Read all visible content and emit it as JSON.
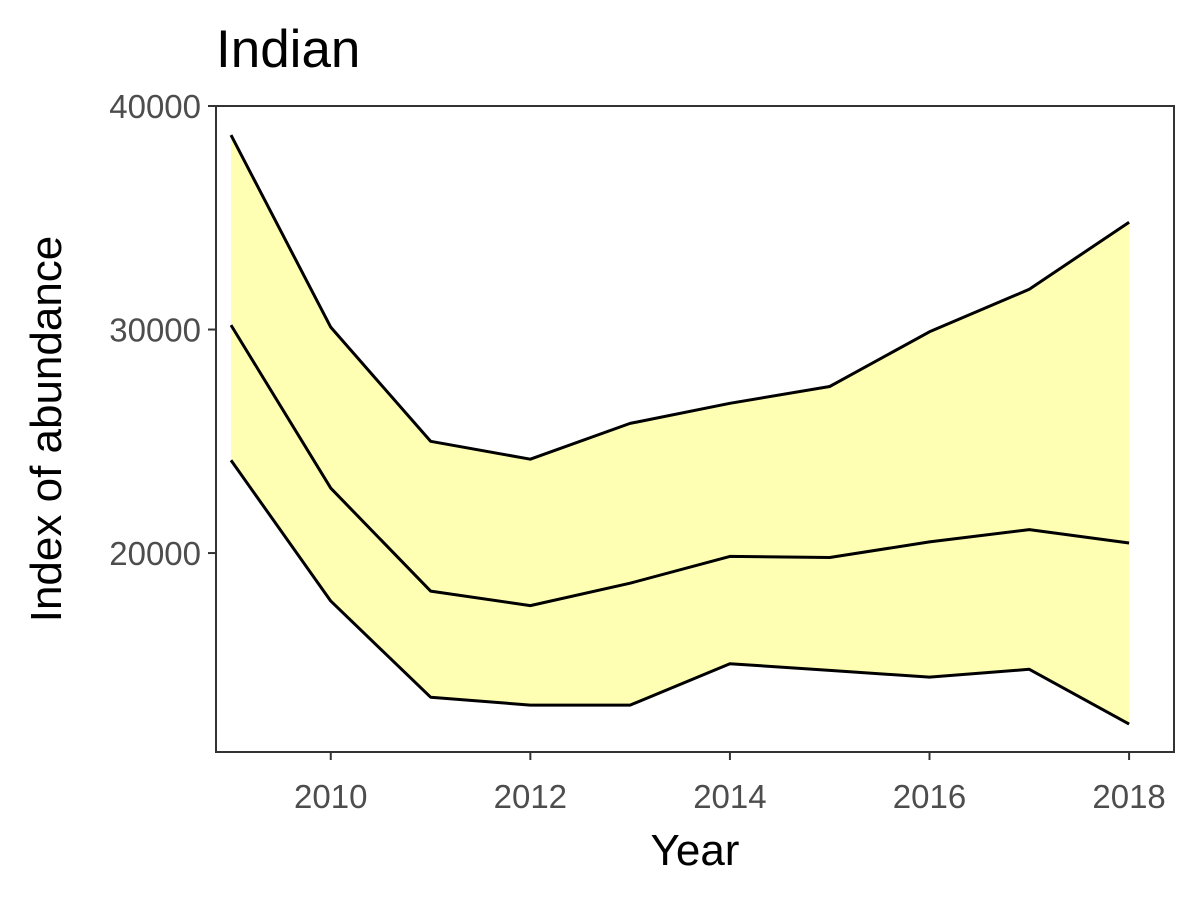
{
  "chart_data": {
    "type": "line",
    "title": "Indian",
    "xlabel": "Year",
    "ylabel": "Index of abundance",
    "xlim": [
      2008.85,
      2018.45
    ],
    "ylim": [
      11100,
      40000
    ],
    "x_ticks": [
      2010,
      2012,
      2014,
      2016,
      2018
    ],
    "y_ticks": [
      20000,
      30000,
      40000
    ],
    "grid": false,
    "x": [
      2009,
      2010,
      2011,
      2012,
      2013,
      2014,
      2015,
      2016,
      2017,
      2018
    ],
    "series": [
      {
        "role": "upper",
        "values": [
          38700,
          30100,
          25000,
          24200,
          25800,
          26700,
          27450,
          29900,
          31800,
          34800
        ]
      },
      {
        "role": "estimate",
        "values": [
          30200,
          22900,
          18300,
          17650,
          18650,
          19850,
          19800,
          20500,
          21050,
          20450
        ]
      },
      {
        "role": "lower",
        "values": [
          24150,
          17850,
          13550,
          13200,
          13200,
          15050,
          14750,
          14450,
          14800,
          12350
        ]
      }
    ],
    "band_fill": "#ffffb3",
    "line_color": "#000000"
  }
}
